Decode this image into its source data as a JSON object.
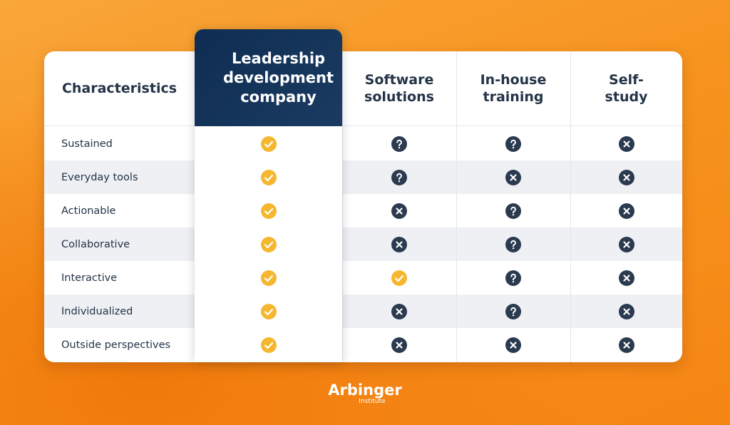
{
  "header": {
    "columns": [
      "Characteristics",
      "Leadership development company",
      "Software solutions",
      "In-house training",
      "Self-study"
    ]
  },
  "rows": [
    {
      "label": "Sustained",
      "cells": [
        "yes",
        "maybe",
        "maybe",
        "no"
      ]
    },
    {
      "label": "Everyday tools",
      "cells": [
        "yes",
        "maybe",
        "no",
        "no"
      ]
    },
    {
      "label": "Actionable",
      "cells": [
        "yes",
        "no",
        "maybe",
        "no"
      ]
    },
    {
      "label": "Collaborative",
      "cells": [
        "yes",
        "no",
        "maybe",
        "no"
      ]
    },
    {
      "label": "Interactive",
      "cells": [
        "yes",
        "yes",
        "maybe",
        "no"
      ]
    },
    {
      "label": "Individualized",
      "cells": [
        "yes",
        "no",
        "maybe",
        "no"
      ]
    },
    {
      "label": "Outside perspectives",
      "cells": [
        "yes",
        "no",
        "no",
        "no"
      ]
    }
  ],
  "logo": {
    "name": "Arbinger",
    "sub": "Institute"
  }
}
